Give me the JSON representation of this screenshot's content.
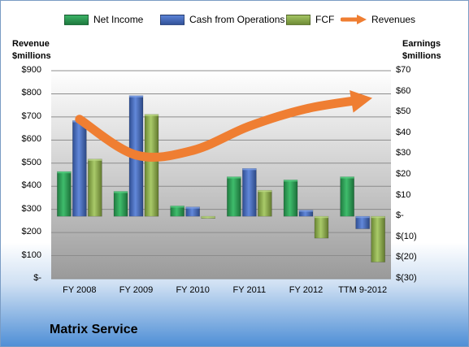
{
  "legend": {
    "net_income": "Net Income",
    "cash_ops": "Cash from Operations",
    "fcf": "FCF",
    "revenues": "Revenues"
  },
  "left_axis_title": [
    "Revenue",
    "$millions"
  ],
  "right_axis_title": [
    "Earnings",
    "$millions"
  ],
  "company_name": "Matrix Service",
  "colors": {
    "net_income": "#2e9e55",
    "cash_ops": "#4a6fc1",
    "fcf": "#8fb04e",
    "revenues": "#ef7e32"
  },
  "chart_data": {
    "type": "bar",
    "categories": [
      "FY 2008",
      "FY 2009",
      "FY 2010",
      "FY 2011",
      "FY 2012",
      "TTM 9-2012"
    ],
    "series": [
      {
        "name": "Net Income",
        "axis": "right",
        "values": [
          21.5,
          12,
          5,
          19,
          17.5,
          19
        ]
      },
      {
        "name": "Cash from Operations",
        "axis": "right",
        "values": [
          46,
          58,
          4.5,
          23,
          3,
          -6
        ]
      },
      {
        "name": "FCF",
        "axis": "right",
        "values": [
          27.5,
          49,
          -1,
          12.5,
          -10.5,
          -22
        ]
      },
      {
        "name": "Revenues",
        "axis": "left",
        "type": "line",
        "values": [
          690,
          535,
          555,
          660,
          735,
          775
        ]
      }
    ],
    "left_axis": {
      "label": "Revenue $millions",
      "ylim": [
        0,
        900
      ],
      "ticks": [
        "$-",
        "$100",
        "$200",
        "$300",
        "$400",
        "$500",
        "$600",
        "$700",
        "$800",
        "$900"
      ]
    },
    "right_axis": {
      "label": "Earnings $millions",
      "ylim": [
        -30,
        70
      ],
      "ticks": [
        "$(30)",
        "$(20)",
        "$(10)",
        "$-",
        "$10",
        "$20",
        "$30",
        "$40",
        "$50",
        "$60",
        "$70"
      ]
    },
    "grid": true,
    "legend_position": "top"
  }
}
